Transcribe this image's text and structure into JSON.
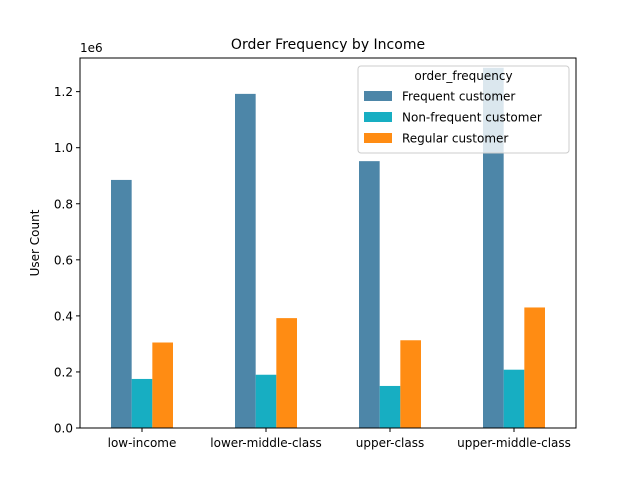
{
  "chart_data": {
    "type": "bar",
    "title": "Order Frequency by Income",
    "xlabel": "",
    "ylabel": "User Count",
    "y_offset_text": "1e6",
    "categories": [
      "low-income",
      "lower-middle-class",
      "upper-class",
      "upper-middle-class"
    ],
    "series": [
      {
        "name": "Frequent customer",
        "color": "#4d86a8",
        "values": [
          885000,
          1192000,
          952000,
          1285000
        ]
      },
      {
        "name": "Non-frequent customer",
        "color": "#17aec2",
        "values": [
          175000,
          190000,
          150000,
          208000
        ]
      },
      {
        "name": "Regular customer",
        "color": "#ff8c13",
        "values": [
          305000,
          392000,
          313000,
          430000
        ]
      }
    ],
    "ylim": [
      0,
      1320000
    ],
    "yticks": [
      0,
      200000,
      400000,
      600000,
      800000,
      1000000,
      1200000
    ],
    "ytick_labels": [
      "0.0",
      "0.2",
      "0.4",
      "0.6",
      "0.8",
      "1.0",
      "1.2"
    ],
    "grid": false,
    "legend": {
      "title": "order_frequency",
      "position": "top-right"
    }
  }
}
